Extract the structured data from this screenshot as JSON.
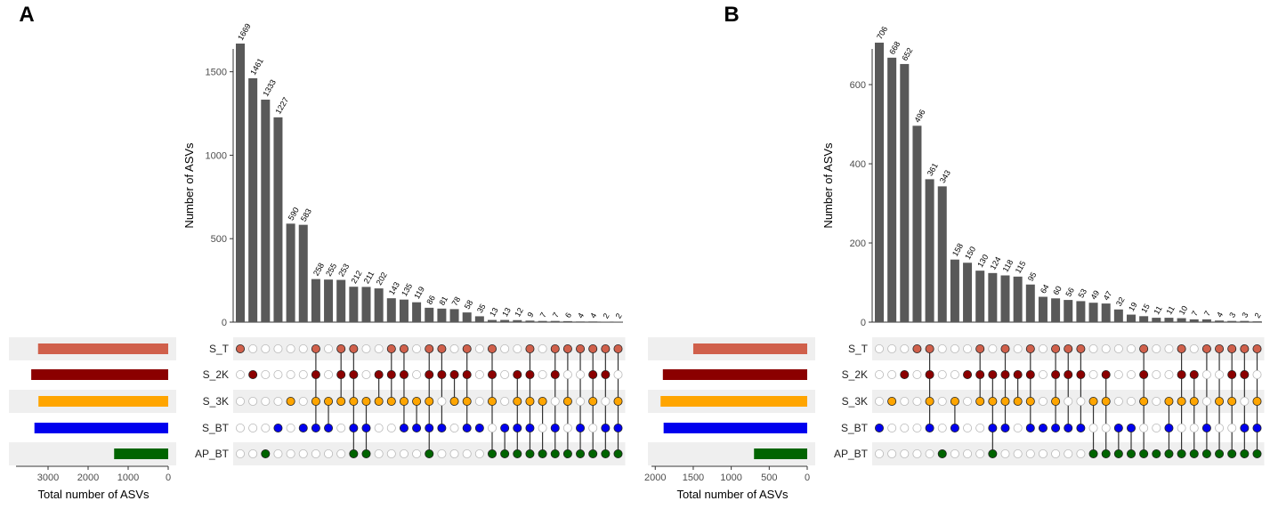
{
  "set_names": [
    "S_T",
    "S_2K",
    "S_3K",
    "S_BT",
    "AP_BT"
  ],
  "set_colors": [
    "#d0604b",
    "#8b0000",
    "#ffa500",
    "#0000ee",
    "#006400"
  ],
  "bar_color": "#595959",
  "empty_dot_color": "#ffffff",
  "chart_data": [
    {
      "panel_label": "A",
      "type": "bar",
      "ylabel": "Number of ASVs",
      "ylim": [
        0,
        1850
      ],
      "yticks": [
        0,
        500,
        1000,
        1500
      ],
      "values": [
        1669,
        1461,
        1333,
        1227,
        590,
        583,
        258,
        255,
        253,
        212,
        211,
        202,
        143,
        135,
        119,
        86,
        81,
        78,
        58,
        35,
        13,
        13,
        12,
        9,
        7,
        7,
        6,
        4,
        4,
        2,
        2
      ],
      "memberships": [
        [
          0
        ],
        [
          1
        ],
        [
          4
        ],
        [
          3
        ],
        [
          2
        ],
        [
          3
        ],
        [
          0,
          1,
          2,
          3
        ],
        [
          2,
          3
        ],
        [
          0,
          1,
          2
        ],
        [
          0,
          1,
          2,
          3,
          4
        ],
        [
          2,
          3,
          4
        ],
        [
          1,
          2
        ],
        [
          0,
          1,
          2
        ],
        [
          0,
          1,
          2,
          3
        ],
        [
          2,
          3
        ],
        [
          0,
          1,
          2,
          3,
          4
        ],
        [
          0,
          1,
          3
        ],
        [
          1,
          2
        ],
        [
          0,
          1,
          2,
          3
        ],
        [
          3
        ],
        [
          0,
          1,
          2,
          4
        ],
        [
          3,
          4
        ],
        [
          1,
          2,
          3,
          4
        ],
        [
          0,
          1,
          2,
          3,
          4
        ],
        [
          2,
          4
        ],
        [
          0,
          1,
          3,
          4
        ],
        [
          0,
          2,
          4
        ],
        [
          0,
          3,
          4
        ],
        [
          0,
          1,
          2,
          4
        ],
        [
          0,
          1,
          3,
          4
        ],
        [
          0,
          2,
          3,
          4
        ]
      ],
      "set_totals": {
        "title": "Total number of ASVs",
        "xlim": [
          0,
          3800
        ],
        "ticks": [
          3000,
          2000,
          1000,
          0
        ],
        "values": [
          3250,
          3420,
          3240,
          3340,
          1350
        ]
      }
    },
    {
      "panel_label": "B",
      "type": "bar",
      "ylabel": "Number of ASVs",
      "ylim": [
        0,
        780
      ],
      "yticks": [
        0,
        200,
        400,
        600
      ],
      "values": [
        706,
        668,
        652,
        496,
        361,
        343,
        158,
        150,
        130,
        124,
        118,
        115,
        95,
        64,
        60,
        56,
        53,
        49,
        47,
        32,
        19,
        15,
        11,
        11,
        10,
        7,
        7,
        4,
        3,
        3,
        2
      ],
      "memberships": [
        [
          3
        ],
        [
          2
        ],
        [
          1
        ],
        [
          0
        ],
        [
          0,
          1,
          2,
          3
        ],
        [
          4
        ],
        [
          2,
          3
        ],
        [
          1
        ],
        [
          0,
          1,
          2
        ],
        [
          1,
          2,
          3,
          4
        ],
        [
          0,
          1,
          2,
          3
        ],
        [
          1,
          2
        ],
        [
          0,
          1,
          2,
          3
        ],
        [
          3
        ],
        [
          0,
          1,
          2,
          3
        ],
        [
          0,
          1,
          3
        ],
        [
          0,
          1,
          3
        ],
        [
          2,
          4
        ],
        [
          1,
          2,
          4
        ],
        [
          3,
          4
        ],
        [
          3,
          4
        ],
        [
          0,
          1,
          2,
          4
        ],
        [
          4
        ],
        [
          2,
          3,
          4
        ],
        [
          0,
          1,
          2,
          4
        ],
        [
          1,
          2,
          4
        ],
        [
          0,
          3,
          4
        ],
        [
          0,
          2,
          4
        ],
        [
          0,
          1,
          2,
          4
        ],
        [
          0,
          1,
          3,
          4
        ],
        [
          0,
          2,
          3,
          4
        ]
      ],
      "set_totals": {
        "title": "Total number of ASVs",
        "xlim": [
          0,
          2050
        ],
        "ticks": [
          2000,
          1500,
          1000,
          500,
          0
        ],
        "values": [
          1500,
          1900,
          1930,
          1890,
          700
        ]
      }
    }
  ]
}
